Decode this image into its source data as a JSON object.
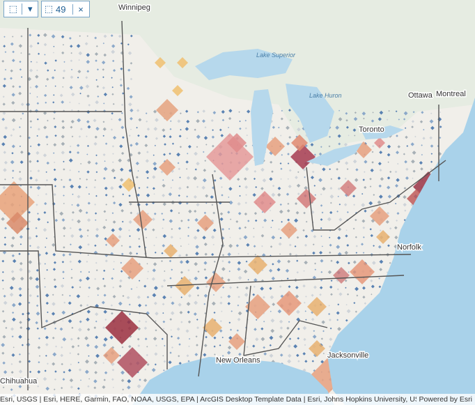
{
  "toolbar": {
    "count": 49,
    "close": "×"
  },
  "places": [
    {
      "label": "Winnipeg"
    },
    {
      "label": "Lake Superior"
    },
    {
      "label": "Lake Huron"
    },
    {
      "label": "Ottawa"
    },
    {
      "label": "Montreal"
    },
    {
      "label": "Toronto"
    },
    {
      "label": "Norfolk"
    },
    {
      "label": "New Orleans"
    },
    {
      "label": "Jacksonville"
    },
    {
      "label": "Chihuahua"
    }
  ],
  "attribution": "Esri, USGS | Esri, HERE, Garmin, FAO, NOAA, USGS, EPA | ArcGIS Desktop Template Data | Esri, Johns Hopkins University, USAFa...",
  "powered_by": "Powered by Esri"
}
